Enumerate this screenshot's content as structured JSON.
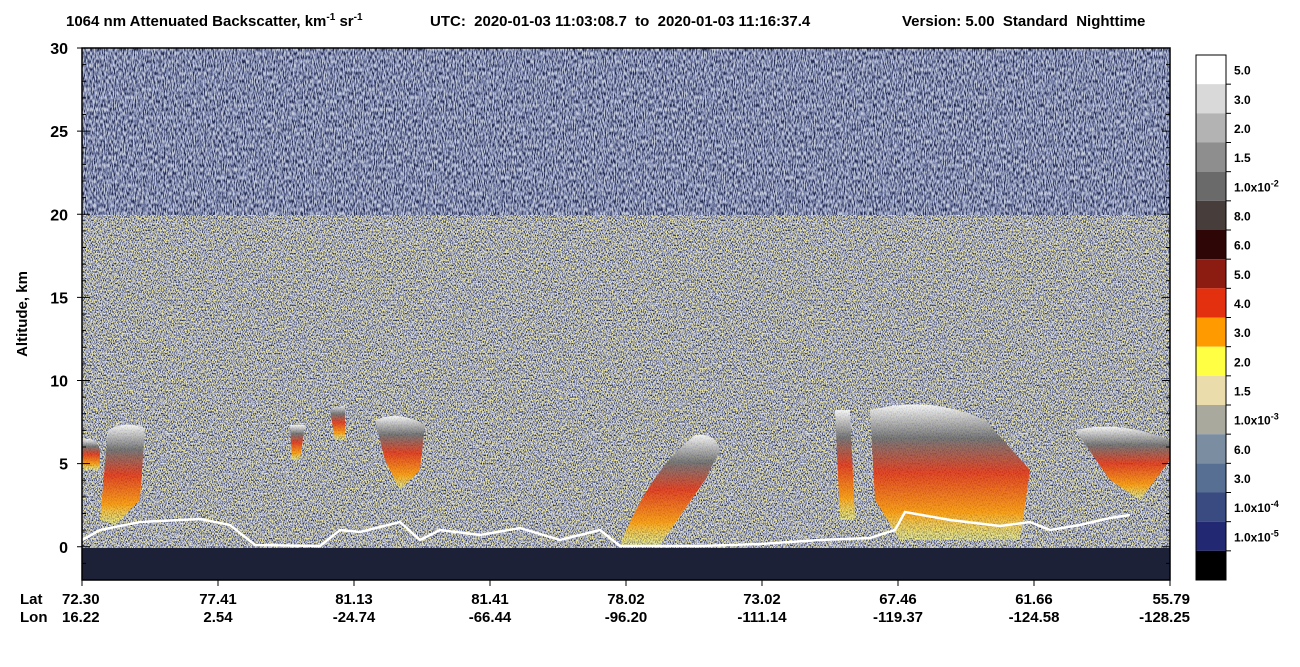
{
  "chart_data": {
    "type": "curtain",
    "title": {
      "text": "1064 nm Attenuated Backscatter, km",
      "sup1": "-1",
      "mid": " sr",
      "sup2": "-1"
    },
    "utc": "UTC:  2020-01-03 11:03:08.7  to  2020-01-03 11:16:37.4",
    "version": "Version: 5.00  Standard  Nighttime",
    "ylabel": "Altitude, km",
    "ylim": [
      -2,
      30
    ],
    "yticks": [
      0,
      5,
      10,
      15,
      20,
      25,
      30
    ],
    "row_labels": [
      "Lat",
      "Lon"
    ],
    "lat": [
      "72.30",
      "77.41",
      "81.13",
      "81.41",
      "78.02",
      "73.02",
      "67.46",
      "61.66",
      "55.79"
    ],
    "lon": [
      "16.22",
      "2.54",
      "-24.74",
      "-66.44",
      "-96.20",
      "-111.14",
      "-119.37",
      "-124.58",
      "-128.25"
    ],
    "colorbar": {
      "colors": [
        "#ffffff",
        "#d9d9d9",
        "#b3b3b3",
        "#8e8e8e",
        "#6a6a6a",
        "#473d3b",
        "#2e0606",
        "#8c1b12",
        "#e3310f",
        "#ff9a00",
        "#ffff44",
        "#ebdcab",
        "#a9a99d",
        "#7b8ea1",
        "#566f92",
        "#3a4b82",
        "#232872",
        "#000000"
      ],
      "labels": [
        {
          "text": "5.0"
        },
        {
          "text": "3.0"
        },
        {
          "text": "2.0"
        },
        {
          "text": "1.5"
        },
        {
          "text": "1.0x10",
          "sup": "-2"
        },
        {
          "text": "8.0"
        },
        {
          "text": "6.0"
        },
        {
          "text": "5.0"
        },
        {
          "text": "4.0"
        },
        {
          "text": "3.0"
        },
        {
          "text": "2.0"
        },
        {
          "text": "1.5"
        },
        {
          "text": "1.0x10",
          "sup": "-3"
        },
        {
          "text": "6.0"
        },
        {
          "text": "3.0"
        },
        {
          "text": "1.0x10",
          "sup": "-4"
        },
        {
          "text": "1.0x10",
          "sup": "-5"
        }
      ]
    }
  }
}
